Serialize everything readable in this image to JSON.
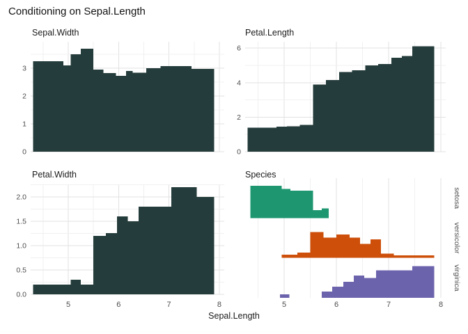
{
  "title": "Conditioning on Sepal.Length",
  "x_axis": {
    "label": "Sepal.Length",
    "tick_labels": [
      "5",
      "6",
      "7",
      "8"
    ],
    "tick_values": [
      5,
      6,
      7,
      8
    ],
    "minor_values": [
      4.5,
      5.5,
      6.5,
      7.5
    ],
    "domain": [
      4.25,
      8.1
    ]
  },
  "colors": {
    "bar": "#243C3B",
    "setosa": "#1E9771",
    "versicolor": "#CD4F0A",
    "virginica": "#6B63AC",
    "grid_major": "#E2E2E2",
    "grid_minor": "#F0F0F0",
    "tick_text": "#4D4D4D",
    "title_text": "#1A1A1A"
  },
  "chart_data": [
    {
      "type": "area",
      "title": "Sepal.Width",
      "xlabel": "Sepal.Length",
      "ylim": [
        0,
        3.95
      ],
      "yticks": [
        0,
        1,
        2,
        3
      ],
      "ytick_labels": [
        "0",
        "1",
        "2",
        "3"
      ],
      "yminor": [
        0.5,
        1.5,
        2.5,
        3.5
      ],
      "grid": "on",
      "segments": [
        [
          4.3,
          4.9,
          3.25
        ],
        [
          4.9,
          5.05,
          3.1
        ],
        [
          5.05,
          5.25,
          3.5
        ],
        [
          5.25,
          5.5,
          3.7
        ],
        [
          5.5,
          5.7,
          2.95
        ],
        [
          5.7,
          5.95,
          2.82
        ],
        [
          5.95,
          6.15,
          2.73
        ],
        [
          6.15,
          6.28,
          2.9
        ],
        [
          6.28,
          6.55,
          2.84
        ],
        [
          6.55,
          6.83,
          3.0
        ],
        [
          6.83,
          7.45,
          3.08
        ],
        [
          7.45,
          7.9,
          2.98
        ]
      ]
    },
    {
      "type": "area",
      "title": "Petal.Length",
      "xlabel": "Sepal.Length",
      "ylim": [
        0,
        6.37
      ],
      "yticks": [
        0,
        2,
        4,
        6
      ],
      "ytick_labels": [
        "0",
        "2",
        "4",
        "6"
      ],
      "yminor": [
        1,
        3,
        5
      ],
      "grid": "on",
      "segments": [
        [
          4.3,
          4.85,
          1.4
        ],
        [
          4.85,
          5.05,
          1.45
        ],
        [
          5.05,
          5.3,
          1.48
        ],
        [
          5.3,
          5.55,
          1.55
        ],
        [
          5.55,
          5.8,
          3.9
        ],
        [
          5.8,
          6.05,
          4.15
        ],
        [
          6.05,
          6.3,
          4.62
        ],
        [
          6.3,
          6.55,
          4.72
        ],
        [
          6.55,
          6.8,
          5.0
        ],
        [
          6.8,
          7.05,
          5.08
        ],
        [
          7.05,
          7.25,
          5.45
        ],
        [
          7.25,
          7.45,
          5.55
        ],
        [
          7.45,
          7.87,
          6.1
        ]
      ]
    },
    {
      "type": "area",
      "title": "Petal.Width",
      "xlabel": "Sepal.Length",
      "ylim": [
        0,
        2.26
      ],
      "yticks": [
        0,
        0.5,
        1,
        1.5,
        2
      ],
      "ytick_labels": [
        "0.0",
        "0.5",
        "1.0",
        "1.5",
        "2.0"
      ],
      "yminor": [
        0.25,
        0.75,
        1.25,
        1.75,
        2.25
      ],
      "grid": "on",
      "segments": [
        [
          4.3,
          5.05,
          0.2
        ],
        [
          5.05,
          5.25,
          0.3
        ],
        [
          5.25,
          5.5,
          0.2
        ],
        [
          5.5,
          5.75,
          1.2
        ],
        [
          5.75,
          5.97,
          1.26
        ],
        [
          5.97,
          6.18,
          1.6
        ],
        [
          6.18,
          6.4,
          1.5
        ],
        [
          6.4,
          7.05,
          1.8
        ],
        [
          7.05,
          7.55,
          2.2
        ],
        [
          7.55,
          7.9,
          2.0
        ]
      ]
    },
    {
      "type": "histogram-ridge",
      "title": "Species",
      "xlabel": "Sepal.Length",
      "note": "relative heights 0-1 per species strip",
      "groups": [
        {
          "name": "setosa",
          "color": "#1E9771",
          "segments": [
            [
              4.35,
              4.95,
              0.87
            ],
            [
              4.95,
              5.12,
              0.78
            ],
            [
              5.12,
              5.55,
              0.74
            ],
            [
              5.55,
              5.72,
              0.21
            ],
            [
              5.72,
              5.85,
              0.26
            ]
          ]
        },
        {
          "name": "versicolor",
          "color": "#CD4F0A",
          "segments": [
            [
              4.95,
              5.25,
              0.09
            ],
            [
              5.25,
              5.5,
              0.14
            ],
            [
              5.5,
              5.75,
              0.7
            ],
            [
              5.75,
              6.0,
              0.55
            ],
            [
              6.0,
              6.25,
              0.63
            ],
            [
              6.25,
              6.45,
              0.55
            ],
            [
              6.45,
              6.65,
              0.38
            ],
            [
              6.65,
              6.85,
              0.5
            ],
            [
              6.85,
              7.1,
              0.12
            ],
            [
              7.1,
              7.87,
              0.07
            ]
          ]
        },
        {
          "name": "virginica",
          "color": "#6B63AC",
          "segments": [
            [
              4.92,
              5.1,
              0.09
            ],
            [
              5.72,
              5.92,
              0.17
            ],
            [
              5.92,
              6.13,
              0.3
            ],
            [
              6.13,
              6.33,
              0.43
            ],
            [
              6.33,
              6.53,
              0.6
            ],
            [
              6.53,
              6.76,
              0.53
            ],
            [
              6.76,
              7.45,
              0.74
            ],
            [
              7.45,
              7.87,
              0.85
            ]
          ]
        }
      ]
    }
  ]
}
